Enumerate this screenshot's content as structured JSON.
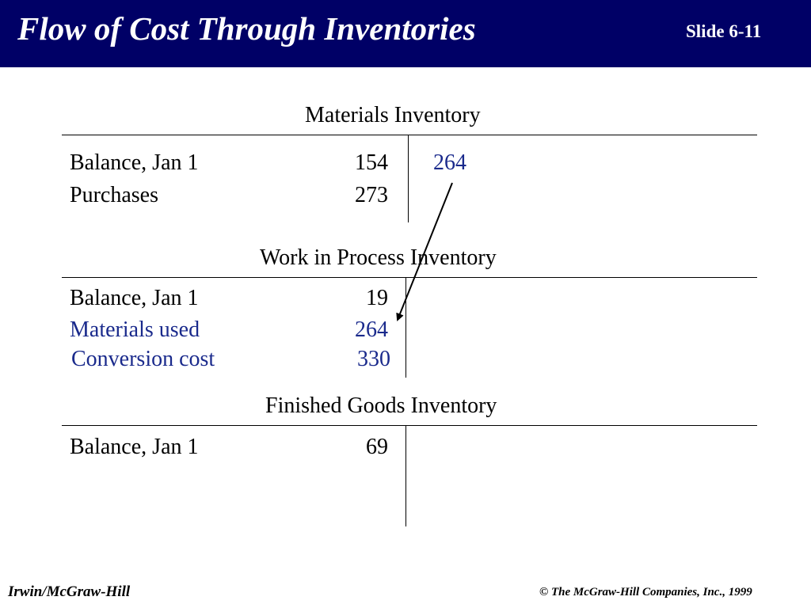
{
  "header": {
    "title": "Flow of Cost Through Inventories",
    "slide_number": "Slide 6-11",
    "background_color": "#000066"
  },
  "accounts": {
    "materials": {
      "title": "Materials Inventory",
      "debits": [
        {
          "label": "Balance, Jan 1",
          "amount": "154"
        },
        {
          "label": "Purchases",
          "amount": "273"
        }
      ],
      "credits": [
        {
          "amount": "264"
        }
      ]
    },
    "wip": {
      "title": "Work in Process Inventory",
      "debits": [
        {
          "label": "Balance, Jan 1",
          "amount": "19"
        },
        {
          "label": "Materials used",
          "amount": "264"
        },
        {
          "label": "Conversion cost",
          "amount": "330"
        }
      ]
    },
    "finished": {
      "title": "Finished Goods Inventory",
      "debits": [
        {
          "label": "Balance, Jan 1",
          "amount": "69"
        }
      ]
    }
  },
  "colors": {
    "highlight": "#1a2a8c"
  },
  "footer": {
    "publisher": "Irwin/McGraw-Hill",
    "copyright": "© The McGraw-Hill Companies, Inc., 1999"
  }
}
